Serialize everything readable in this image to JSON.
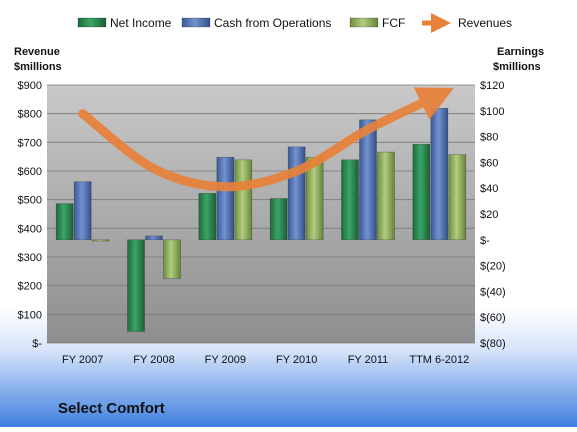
{
  "chart_data": {
    "type": "bar",
    "title": "Select Comfort",
    "categories": [
      "FY 2007",
      "FY 2008",
      "FY 2009",
      "FY 2010",
      "FY 2011",
      "TTM 6-2012"
    ],
    "left_axis": {
      "label_line1": "Revenue",
      "label_line2": "$millions",
      "ylim": [
        0,
        900
      ],
      "ticks": [
        0,
        100,
        200,
        300,
        400,
        500,
        600,
        700,
        800,
        900
      ],
      "tick_labels": [
        "$-",
        "$100",
        "$200",
        "$300",
        "$400",
        "$500",
        "$600",
        "$700",
        "$800",
        "$900"
      ]
    },
    "right_axis": {
      "label_line1": "Earnings",
      "label_line2": "$millions",
      "ylim": [
        -80,
        120
      ],
      "ticks": [
        -80,
        -60,
        -40,
        -20,
        0,
        20,
        40,
        60,
        80,
        100,
        120
      ],
      "tick_labels": [
        "$(80)",
        "$(60)",
        "$(40)",
        "$(20)",
        "$-",
        "$20",
        "$40",
        "$60",
        "$80",
        "$100",
        "$120"
      ]
    },
    "series": [
      {
        "name": "Net Income",
        "axis": "right",
        "kind": "bar",
        "color": "#2e8b57",
        "values": [
          28,
          -71,
          36,
          32,
          62,
          74
        ]
      },
      {
        "name": "Cash from Operations",
        "axis": "right",
        "kind": "bar",
        "color": "#4f6fad",
        "values": [
          45,
          3,
          64,
          72,
          93,
          102
        ]
      },
      {
        "name": "FCF",
        "axis": "right",
        "kind": "bar",
        "color": "#8fae5a",
        "values": [
          -1,
          -30,
          62,
          64,
          68,
          66
        ]
      },
      {
        "name": "Revenues",
        "axis": "left",
        "kind": "line",
        "color": "#e8813a",
        "values": [
          800,
          608,
          545,
          600,
          745,
          865
        ]
      }
    ],
    "legend": "top",
    "grid": true,
    "colors": {
      "plot_bg_top": "#c8c8c8",
      "plot_bg_bottom": "#909090",
      "page_bg_top": "#ffffff",
      "page_bg_bottom": "#3f7fe0"
    }
  }
}
